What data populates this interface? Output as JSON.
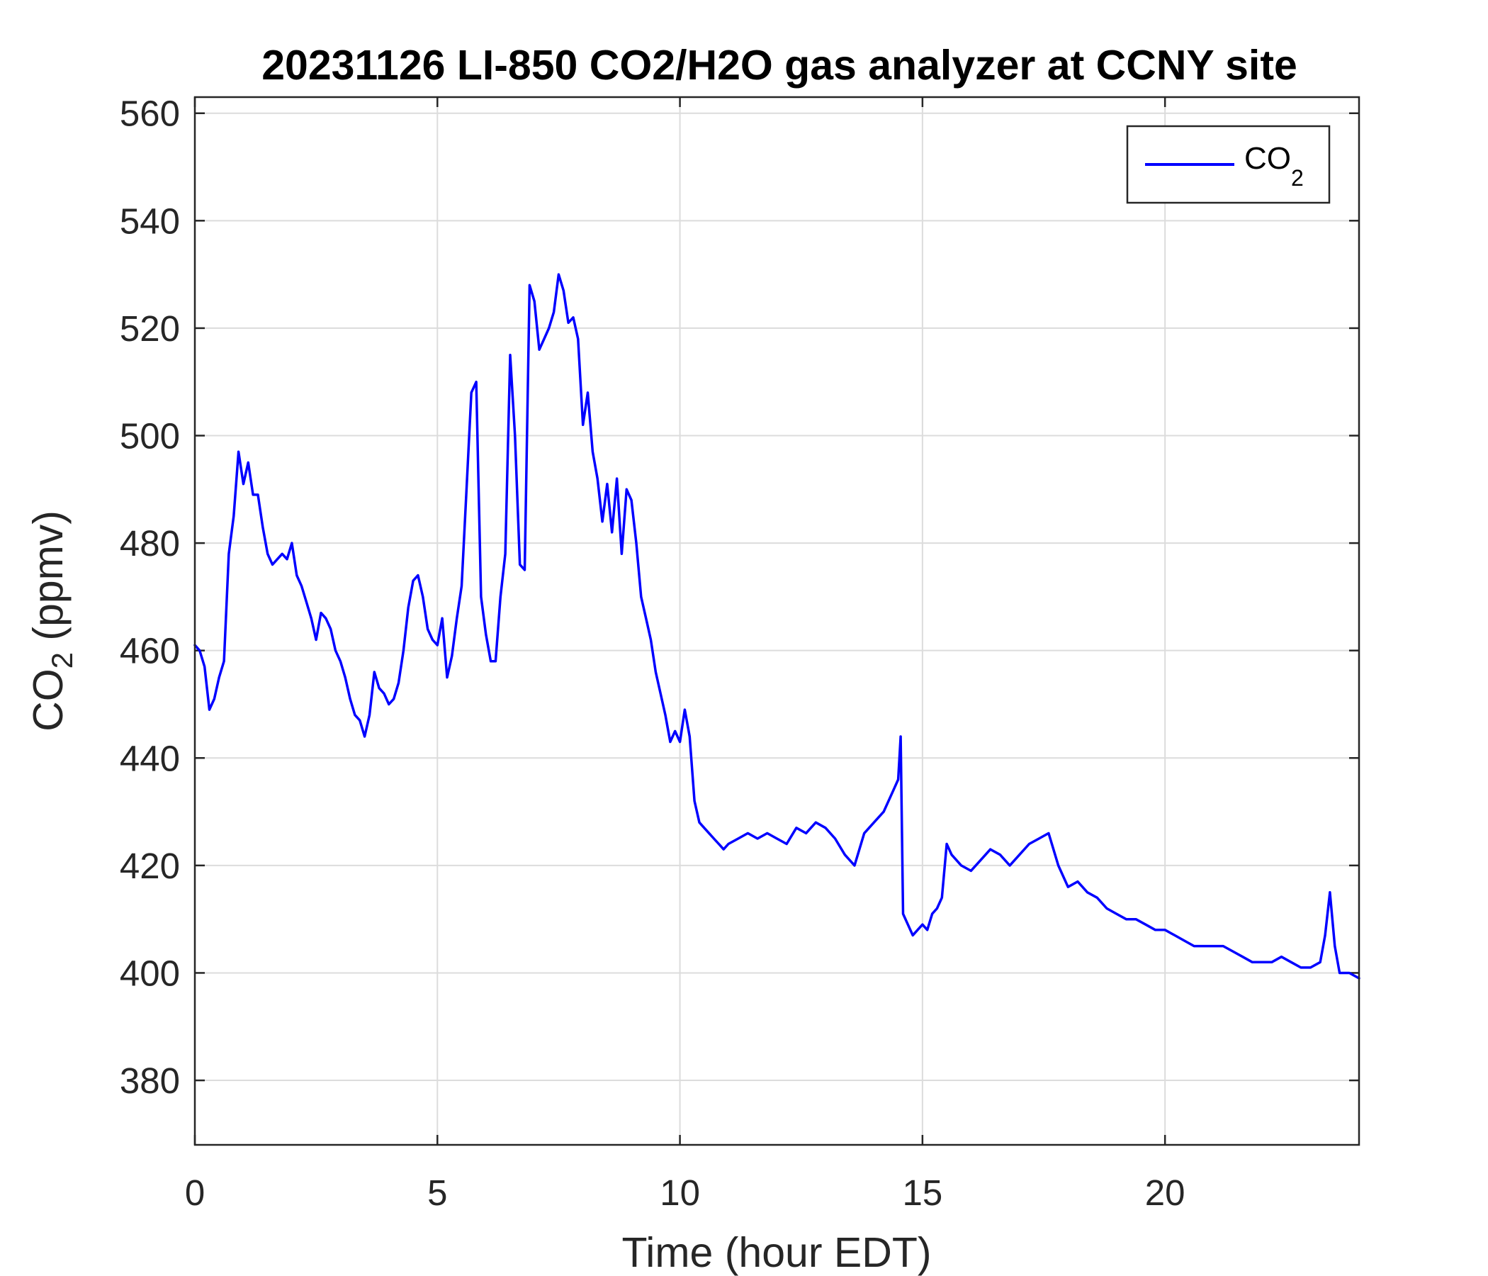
{
  "chart_data": {
    "type": "line",
    "title": "20231126 LI-850 CO2/H2O gas analyzer at CCNY site",
    "xlabel": "Time (hour EDT)",
    "ylabel_main": "CO",
    "ylabel_sub": "2",
    "ylabel_tail": " (ppmv)",
    "xlim": [
      0,
      24
    ],
    "ylim": [
      368,
      563
    ],
    "xticks": [
      0,
      5,
      10,
      15,
      20
    ],
    "yticks": [
      380,
      400,
      420,
      440,
      460,
      480,
      500,
      520,
      540,
      560
    ],
    "grid": true,
    "legend_position": "top-right",
    "legend": [
      {
        "main": "CO",
        "sub": "2"
      }
    ],
    "series": [
      {
        "name": "CO2",
        "color": "#0000ff",
        "x": [
          0,
          0.1,
          0.2,
          0.3,
          0.4,
          0.5,
          0.6,
          0.7,
          0.8,
          0.9,
          1.0,
          1.1,
          1.2,
          1.3,
          1.4,
          1.5,
          1.6,
          1.7,
          1.8,
          1.9,
          2.0,
          2.1,
          2.2,
          2.3,
          2.4,
          2.5,
          2.6,
          2.7,
          2.8,
          2.9,
          3.0,
          3.1,
          3.2,
          3.3,
          3.4,
          3.5,
          3.6,
          3.7,
          3.8,
          3.9,
          4.0,
          4.1,
          4.2,
          4.3,
          4.4,
          4.5,
          4.6,
          4.7,
          4.8,
          4.9,
          5.0,
          5.1,
          5.2,
          5.3,
          5.4,
          5.5,
          5.6,
          5.7,
          5.8,
          5.9,
          6.0,
          6.1,
          6.2,
          6.3,
          6.4,
          6.5,
          6.6,
          6.7,
          6.8,
          6.9,
          7.0,
          7.1,
          7.2,
          7.3,
          7.4,
          7.5,
          7.6,
          7.7,
          7.8,
          7.9,
          8.0,
          8.1,
          8.2,
          8.3,
          8.4,
          8.5,
          8.6,
          8.7,
          8.8,
          8.9,
          9.0,
          9.1,
          9.2,
          9.3,
          9.4,
          9.5,
          9.6,
          9.7,
          9.8,
          9.9,
          10.0,
          10.1,
          10.2,
          10.3,
          10.4,
          10.5,
          10.6,
          10.7,
          10.8,
          10.9,
          11.0,
          11.2,
          11.4,
          11.6,
          11.8,
          12.0,
          12.2,
          12.4,
          12.6,
          12.8,
          13.0,
          13.2,
          13.4,
          13.6,
          13.8,
          14.0,
          14.2,
          14.4,
          14.5,
          14.55,
          14.6,
          14.7,
          14.8,
          14.9,
          15.0,
          15.1,
          15.2,
          15.3,
          15.4,
          15.5,
          15.6,
          15.8,
          16.0,
          16.2,
          16.4,
          16.6,
          16.8,
          17.0,
          17.2,
          17.4,
          17.6,
          17.8,
          18.0,
          18.2,
          18.4,
          18.6,
          18.8,
          19.0,
          19.2,
          19.4,
          19.6,
          19.8,
          20.0,
          20.2,
          20.4,
          20.6,
          20.8,
          21.0,
          21.2,
          21.4,
          21.6,
          21.8,
          22.0,
          22.2,
          22.4,
          22.6,
          22.8,
          23.0,
          23.2,
          23.3,
          23.4,
          23.5,
          23.6,
          23.8,
          24.0
        ],
        "values": [
          461,
          460,
          457,
          449,
          451,
          455,
          458,
          478,
          485,
          497,
          491,
          495,
          489,
          489,
          483,
          478,
          476,
          477,
          478,
          477,
          480,
          474,
          472,
          469,
          466,
          462,
          467,
          466,
          464,
          460,
          458,
          455,
          451,
          448,
          447,
          444,
          448,
          456,
          453,
          452,
          450,
          451,
          454,
          460,
          468,
          473,
          474,
          470,
          464,
          462,
          461,
          466,
          455,
          459,
          466,
          472,
          490,
          508,
          510,
          470,
          463,
          458,
          458,
          470,
          478,
          515,
          500,
          476,
          475,
          528,
          525,
          516,
          518,
          520,
          523,
          530,
          527,
          521,
          522,
          518,
          502,
          508,
          497,
          492,
          484,
          491,
          482,
          492,
          478,
          490,
          488,
          480,
          470,
          466,
          462,
          456,
          452,
          448,
          443,
          445,
          443,
          449,
          444,
          432,
          428,
          427,
          426,
          425,
          424,
          423,
          424,
          425,
          426,
          425,
          426,
          425,
          424,
          427,
          426,
          428,
          427,
          425,
          422,
          420,
          426,
          428,
          430,
          434,
          436,
          444,
          411,
          409,
          407,
          408,
          409,
          408,
          411,
          412,
          414,
          424,
          422,
          420,
          419,
          421,
          423,
          422,
          420,
          422,
          424,
          425,
          426,
          420,
          416,
          417,
          415,
          414,
          412,
          411,
          410,
          410,
          409,
          408,
          408,
          407,
          406,
          405,
          405,
          405,
          405,
          404,
          403,
          402,
          402,
          402,
          403,
          402,
          401,
          401,
          402,
          407,
          415,
          405,
          400,
          400,
          399
        ]
      }
    ]
  }
}
